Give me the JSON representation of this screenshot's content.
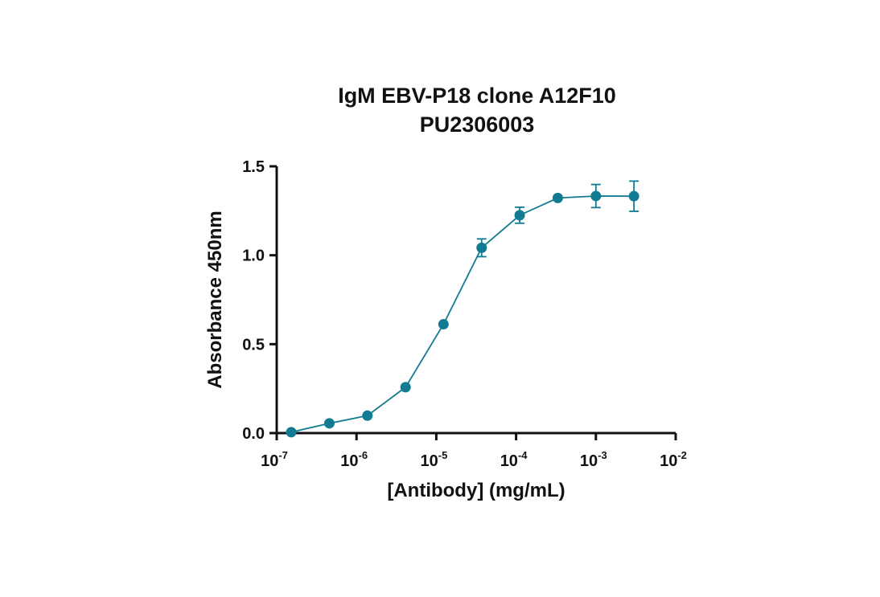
{
  "chart_data": {
    "type": "line",
    "title": [
      "IgM EBV-P18 clone A12F10",
      "PU2306003"
    ],
    "xlabel": "[Antibody] (mg/mL)",
    "ylabel": "Absorbance 450nm",
    "x_scale": "log",
    "xlim": [
      1e-07,
      0.01
    ],
    "ylim": [
      0,
      1.5
    ],
    "x_ticks": [
      {
        "base": "10",
        "exp": "-7"
      },
      {
        "base": "10",
        "exp": "-6"
      },
      {
        "base": "10",
        "exp": "-5"
      },
      {
        "base": "10",
        "exp": "-4"
      },
      {
        "base": "10",
        "exp": "-3"
      },
      {
        "base": "10",
        "exp": "-2"
      }
    ],
    "y_ticks": [
      "0.0",
      "0.5",
      "1.0",
      "1.5"
    ],
    "grid": false,
    "color": "#127b91",
    "series": [
      {
        "x": [
          1.52e-07,
          4.57e-07,
          1.37e-06,
          4.12e-06,
          1.23e-05,
          3.7e-05,
          0.000111,
          0.000333,
          0.001,
          0.003
        ],
        "y": [
          0.005,
          0.055,
          0.098,
          0.258,
          0.612,
          1.042,
          1.225,
          1.322,
          1.333,
          1.332
        ],
        "error": [
          0,
          0,
          0,
          0,
          0,
          0.05,
          0.045,
          0,
          0.065,
          0.085
        ]
      }
    ]
  }
}
